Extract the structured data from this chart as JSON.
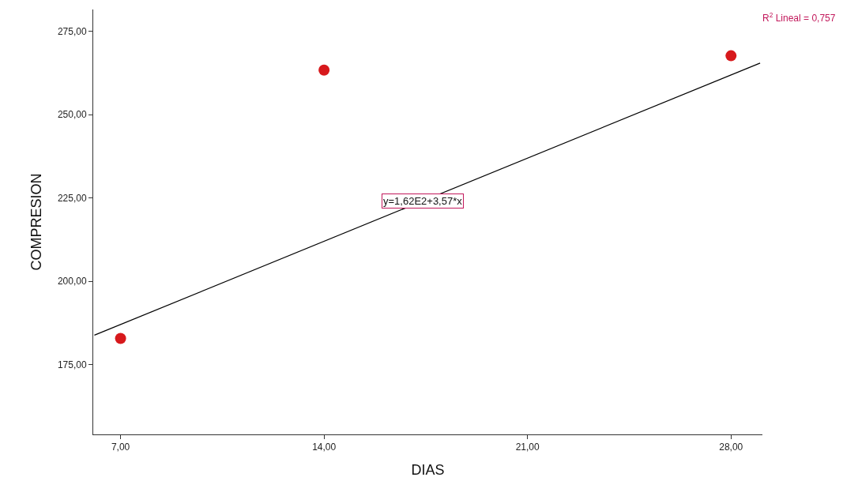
{
  "chart_data": {
    "type": "scatter",
    "xlabel": "DIAS",
    "ylabel": "COMPRESION",
    "x": [
      7,
      14,
      28
    ],
    "series": [
      {
        "color": "#d7191c",
        "values": [
          182.8,
          263.4,
          267.7
        ],
        "marker": "circle"
      },
      {
        "type": "line",
        "color": "#000000",
        "x": [
          6.1,
          29.0
        ],
        "values": [
          183.8,
          265.5
        ],
        "line_style": "solid"
      }
    ],
    "xlim": [
      6.06,
      29.08
    ],
    "ylim": [
      154,
      281.6
    ],
    "xticks": [
      {
        "value": 7,
        "label": "7,00"
      },
      {
        "value": 14,
        "label": "14,00"
      },
      {
        "value": 21,
        "label": "21,00"
      },
      {
        "value": 28,
        "label": "28,00"
      }
    ],
    "yticks": [
      {
        "value": 175,
        "label": "175,00"
      },
      {
        "value": 200,
        "label": "200,00"
      },
      {
        "value": 225,
        "label": "225,00"
      },
      {
        "value": 250,
        "label": "250,00"
      },
      {
        "value": 275,
        "label": "275,00"
      }
    ],
    "annotations": [
      {
        "text": "y=1,62E2+3,57*x",
        "x": 17.4,
        "y": 224.1
      },
      "R$^{2}$ Lineal = 0,757"
    ]
  }
}
